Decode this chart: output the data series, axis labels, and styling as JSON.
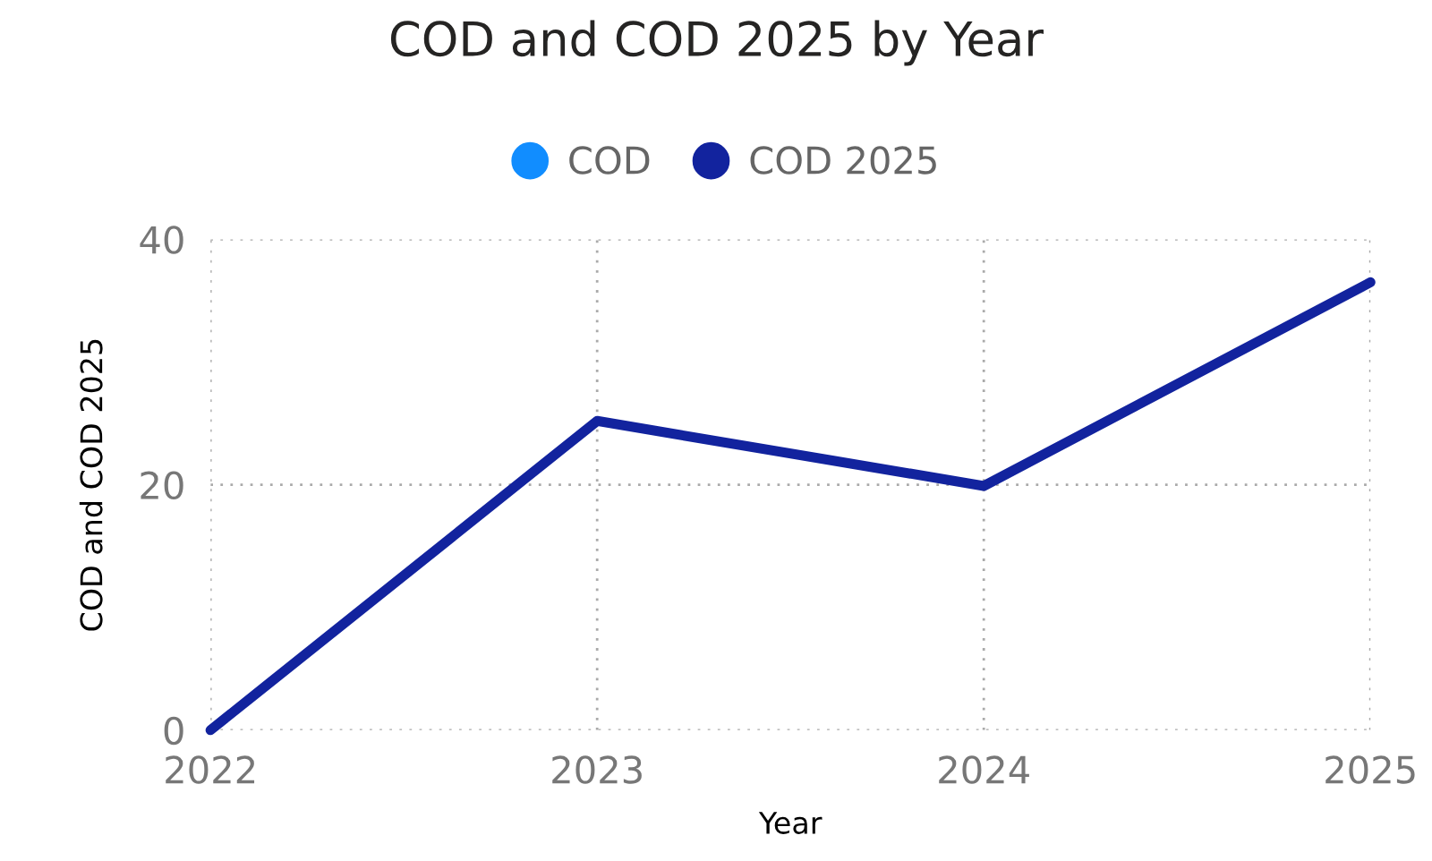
{
  "chart_data": {
    "type": "line",
    "title": "COD and COD 2025 by Year",
    "xlabel": "Year",
    "ylabel": "COD and COD 2025",
    "x": [
      2022,
      2023,
      2024,
      2025
    ],
    "series": [
      {
        "name": "COD",
        "color": "#118dff",
        "values": [
          null,
          null,
          null,
          null
        ]
      },
      {
        "name": "COD 2025",
        "color": "#12239e",
        "values": [
          0,
          25.2,
          19.9,
          36.5
        ]
      }
    ],
    "xlim": [
      2022,
      2025
    ],
    "xticks": [
      2022,
      2023,
      2024,
      2025
    ],
    "ylim": [
      0,
      40
    ],
    "yticks": [
      0,
      20,
      40
    ],
    "grid": true,
    "legend": "top",
    "marker": "none",
    "line_style": "solid"
  }
}
